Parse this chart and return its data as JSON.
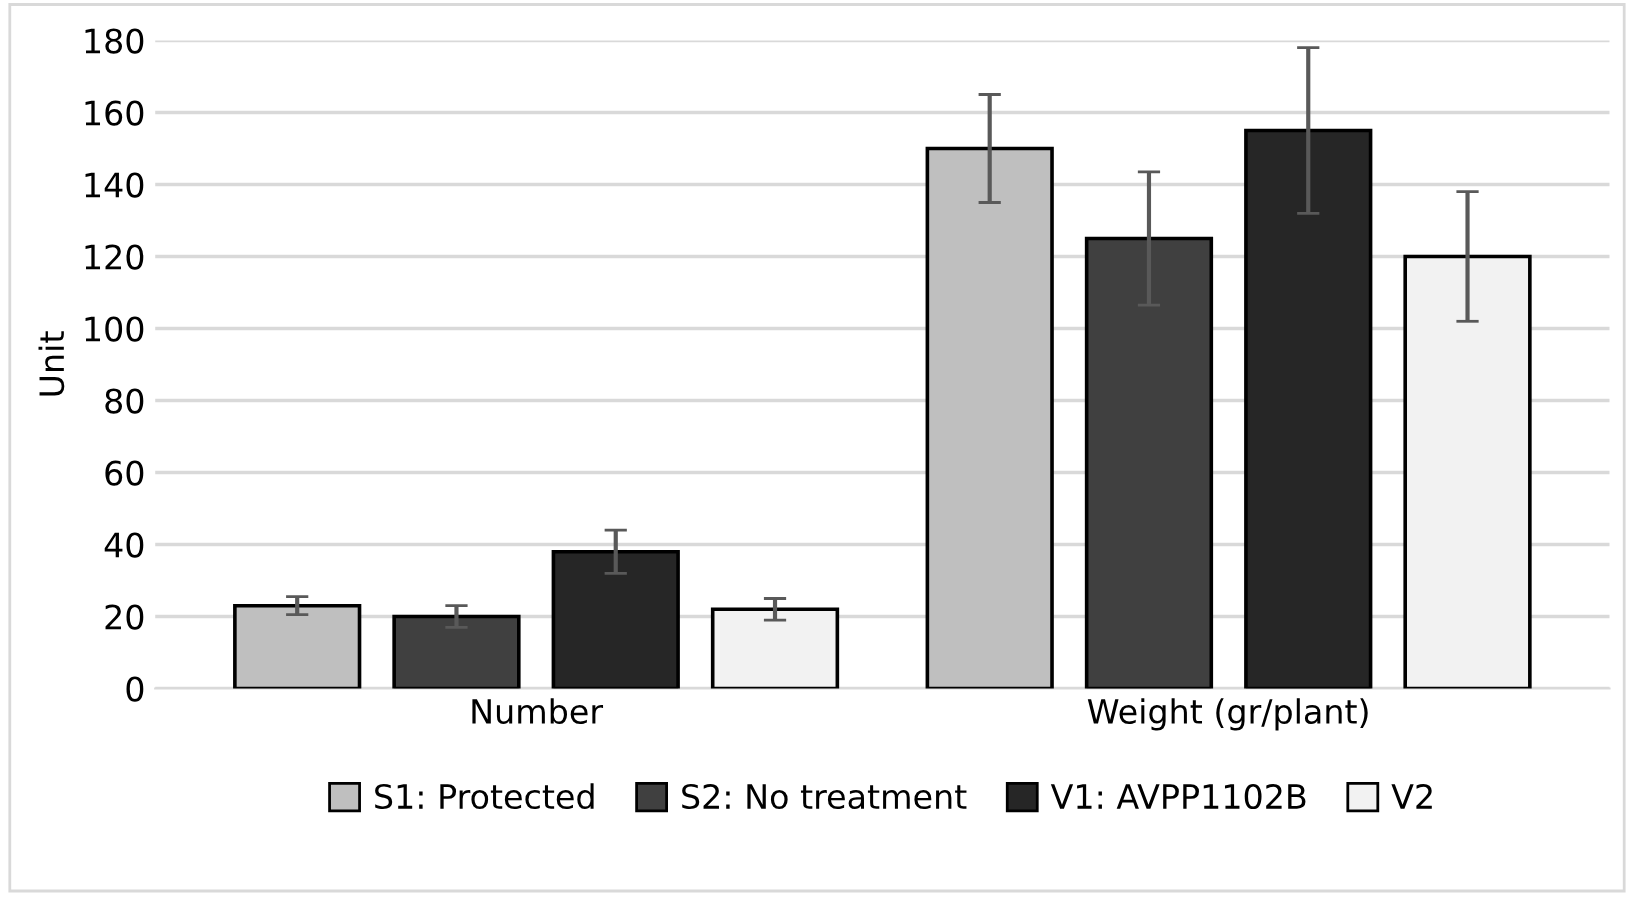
{
  "chart_data": {
    "type": "bar",
    "ylabel": "Unit",
    "categories": [
      "Number",
      "Weight (gr/plant)"
    ],
    "series": [
      {
        "name": "S1: Protected",
        "color": "#bfbfbf",
        "values": [
          23,
          150
        ],
        "errors": [
          2.5,
          15
        ]
      },
      {
        "name": "S2: No treatment",
        "color": "#404040",
        "values": [
          20,
          125
        ],
        "errors": [
          3,
          18.5
        ]
      },
      {
        "name": "V1: AVPP1102B",
        "color": "#262626",
        "values": [
          38,
          155
        ],
        "errors": [
          6,
          23
        ]
      },
      {
        "name": "V2",
        "color": "#f2f2f2",
        "values": [
          22,
          120
        ],
        "errors": [
          3,
          18
        ]
      }
    ],
    "ylim": [
      0,
      180
    ],
    "yticks": [
      0,
      20,
      40,
      60,
      80,
      100,
      120,
      140,
      160,
      180
    ],
    "grid": "y",
    "legend": "bottom"
  }
}
